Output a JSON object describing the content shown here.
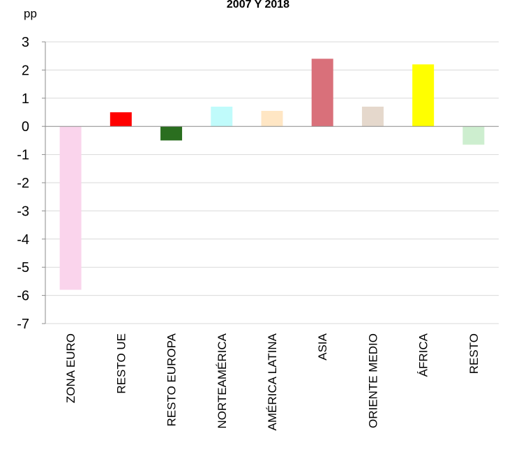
{
  "chart_data": {
    "type": "bar",
    "title": "2007 Y 2018",
    "ylabel": "pp",
    "xlabel": "",
    "categories": [
      "ZONA EURO",
      "RESTO UE",
      "RESTO EUROPA",
      "NORTEAMÉRICA",
      "AMÉRICA LATINA",
      "ASIA",
      "ORIENTE MEDIO",
      "ÁFRICA",
      "RESTO"
    ],
    "values": [
      -5.8,
      0.5,
      -0.5,
      0.7,
      0.55,
      2.4,
      0.7,
      2.2,
      -0.65
    ],
    "colors": [
      "#fad4ec",
      "#ff0000",
      "#2a6e1f",
      "#c0fbfb",
      "#ffe6c4",
      "#d9707a",
      "#e5d8cc",
      "#ffff00",
      "#cdeecf"
    ],
    "ylim": [
      -7,
      3
    ],
    "yticks": [
      "3",
      "2",
      "1",
      "0",
      "-1",
      "-2",
      "-3",
      "-4",
      "-5",
      "-6",
      "-7"
    ],
    "grid": true,
    "gridColor": "#d9d9d9",
    "axisColor": "#8c8c8c",
    "legend": "none"
  }
}
